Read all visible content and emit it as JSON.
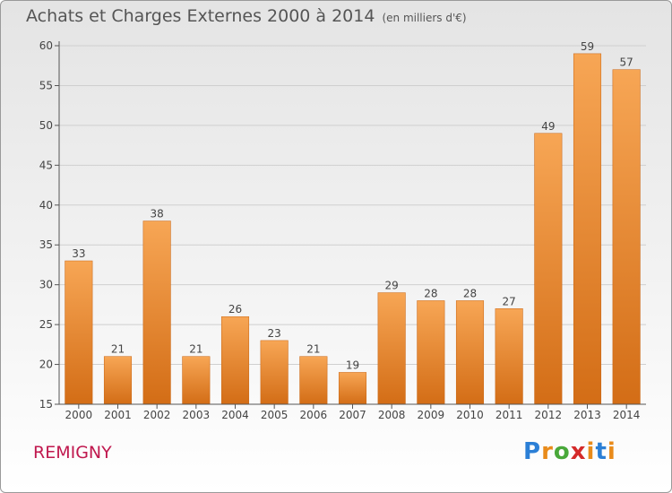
{
  "title": "Achats et Charges Externes 2000 à 2014",
  "subtitle": "(en milliers d'€)",
  "commune": "REMIGNY",
  "logo": {
    "letters": [
      "P",
      "r",
      "o",
      "x",
      "i",
      "t",
      "i"
    ],
    "colors": [
      "#2b7fd6",
      "#e98b1a",
      "#49a83a",
      "#d42a2a",
      "#e98b1a",
      "#2b7fd6",
      "#e98b1a"
    ]
  },
  "colors": {
    "bar_top": "#f7a655",
    "bar_bottom": "#d36d16",
    "bar_edge": "#c86412",
    "axis": "#555555",
    "grid": "#cfcfcf",
    "text": "#444444"
  },
  "chart_data": {
    "type": "bar",
    "title": "Achats et Charges Externes 2000 à 2014",
    "subtitle": "(en milliers d'€)",
    "categories": [
      "2000",
      "2001",
      "2002",
      "2003",
      "2004",
      "2005",
      "2006",
      "2007",
      "2008",
      "2009",
      "2010",
      "2011",
      "2012",
      "2013",
      "2014"
    ],
    "values": [
      33,
      21,
      38,
      21,
      26,
      23,
      21,
      19,
      29,
      28,
      28,
      27,
      49,
      59,
      57
    ],
    "ylim": [
      15,
      60
    ],
    "yticks": [
      15,
      20,
      25,
      30,
      35,
      40,
      45,
      50,
      55,
      60
    ],
    "grid": true,
    "xlabel": "",
    "ylabel": ""
  }
}
